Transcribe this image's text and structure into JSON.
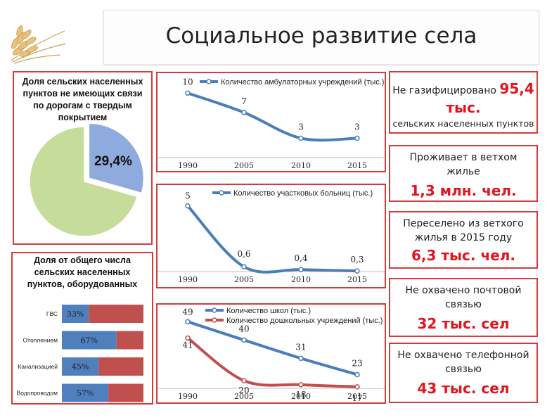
{
  "title": "Социальное развитие села",
  "pie": {
    "title": "Доля сельских населенных пунктов не имеющих связи по дорогам с твердым покрытием",
    "label": "29,4%",
    "colors": {
      "share": "#8faadc",
      "rest": "#c5dc9a"
    }
  },
  "bars": {
    "title": "Доля от общего числа сельских населенных пунктов, оборудованных",
    "colors": {
      "share": "#4f7fbd",
      "rest": "#c0504d"
    }
  },
  "stats": [
    {
      "line1": "Не газифицировано ",
      "big1": "95,4",
      "big2": "тыс.",
      "line2": "сельских населенных пунктов"
    },
    {
      "line1": "Проживает в ветхом жилье",
      "big": "1,3 млн. чел."
    },
    {
      "line1": "Переселено из ветхого жилья в 2015 году",
      "big": "6,3 тыс. чел."
    },
    {
      "line1": "Не охвачено почтовой связью",
      "big": "32 тыс. сел"
    },
    {
      "line1": "Не охвачено телефонной связью",
      "big": "43 тыс. сел"
    }
  ],
  "chart_data": [
    {
      "type": "pie",
      "title": "Доля сельских населенных пунктов не имеющих связи по дорогам с твердым покрытием",
      "slices": [
        {
          "name": "",
          "value": 29.4,
          "label": "29,4%"
        },
        {
          "name": "",
          "value": 70.6,
          "label": ""
        }
      ]
    },
    {
      "type": "line",
      "x": [
        "1990",
        "2005",
        "2010",
        "2015"
      ],
      "series": [
        {
          "name": "Количество амбулаторных учреждений (тыс.)",
          "values": [
            10,
            7,
            3,
            3
          ],
          "labels": [
            "10",
            "7",
            "3",
            "3"
          ],
          "color": "#4a7ebb"
        }
      ],
      "ylim": [
        0,
        12
      ]
    },
    {
      "type": "line",
      "x": [
        "1990",
        "2005",
        "2010",
        "2015"
      ],
      "series": [
        {
          "name": "Количество участковых больниц (тыс.)",
          "values": [
            5,
            0.6,
            0.4,
            0.3
          ],
          "labels": [
            "5",
            "0,6",
            "0,4",
            "0,3"
          ],
          "color": "#4a7ebb"
        }
      ],
      "ylim": [
        0,
        6
      ]
    },
    {
      "type": "line",
      "x": [
        "1990",
        "2005",
        "2010",
        "2015"
      ],
      "series": [
        {
          "name": "Количество школ (тыс.)",
          "values": [
            49,
            40,
            31,
            23
          ],
          "labels": [
            "49",
            "40",
            "31",
            "23"
          ],
          "color": "#4a7ebb"
        },
        {
          "name": "Количество дошкольных учреждений (тыс.)",
          "values": [
            41,
            20,
            18,
            17
          ],
          "labels": [
            "41",
            "20",
            "18",
            "17"
          ],
          "color": "#c0504d"
        }
      ],
      "ylim": [
        10,
        55
      ]
    },
    {
      "type": "bar",
      "orientation": "horizontal",
      "stacked": true,
      "title": "Доля от общего числа сельских населенных пунктов, оборудованных",
      "categories": [
        "ГВС",
        "Отоплением",
        "Канализацией",
        "Водопроводом"
      ],
      "values": [
        33,
        67,
        45,
        57
      ],
      "labels": [
        "33%",
        "67%",
        "45%",
        "57%"
      ],
      "xlim": [
        0,
        100
      ]
    }
  ]
}
